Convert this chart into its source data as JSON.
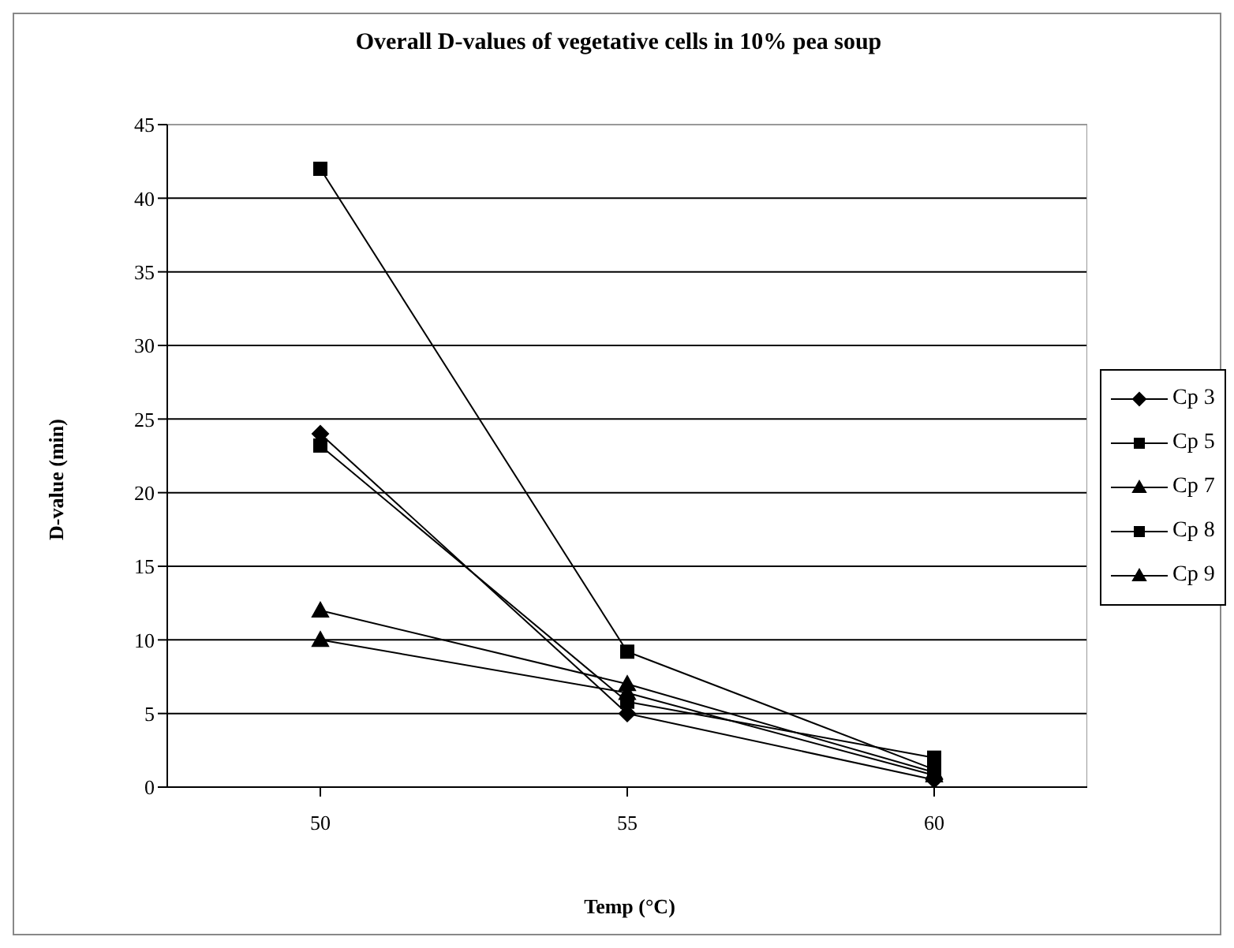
{
  "chart_data": {
    "type": "line",
    "title": "Overall D-values of vegetative cells in 10% pea soup",
    "xlabel": "Temp (°C)",
    "ylabel": "D-value (min)",
    "categories": [
      "50",
      "55",
      "60"
    ],
    "series": [
      {
        "name": "Cp 3",
        "color": "#000000",
        "marker": "diamond",
        "values": [
          24,
          5,
          0.5
        ]
      },
      {
        "name": "Cp 5",
        "color": "#000000",
        "marker": "square",
        "values": [
          42,
          9.2,
          1.2
        ]
      },
      {
        "name": "Cp 7",
        "color": "#000000",
        "marker": "triangle",
        "values": [
          12,
          7,
          1
        ]
      },
      {
        "name": "Cp 8",
        "color": "#000000",
        "marker": "square",
        "values": [
          23.2,
          5.8,
          2
        ]
      },
      {
        "name": "Cp 9",
        "color": "#000000",
        "marker": "triangle",
        "values": [
          10,
          6.4,
          0.8
        ]
      }
    ],
    "ylim": [
      0,
      45
    ],
    "yticks": [
      0,
      5,
      10,
      15,
      20,
      25,
      30,
      35,
      40,
      45
    ],
    "grid": "y",
    "legend": "right",
    "line_style": "solid"
  }
}
